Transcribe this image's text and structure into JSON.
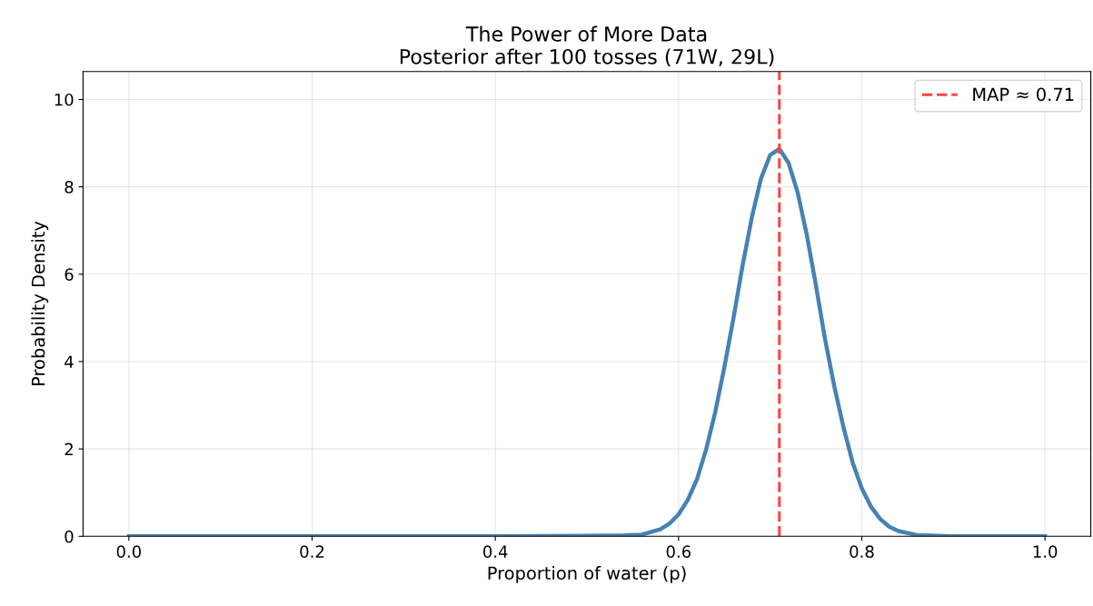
{
  "chart_data": {
    "type": "line",
    "title": "The Power of More Data\nPosterior after 100 tosses (71W, 29L)",
    "xlabel": "Proportion of water (p)",
    "ylabel": "Probability Density",
    "x": [
      0.0,
      0.2,
      0.4,
      0.5,
      0.54,
      0.56,
      0.58,
      0.59,
      0.6,
      0.61,
      0.62,
      0.63,
      0.64,
      0.65,
      0.66,
      0.67,
      0.68,
      0.69,
      0.7,
      0.71,
      0.72,
      0.73,
      0.74,
      0.75,
      0.76,
      0.77,
      0.78,
      0.79,
      0.8,
      0.81,
      0.82,
      0.83,
      0.84,
      0.86,
      0.9,
      1.0
    ],
    "series": [
      {
        "color": "#4682b4",
        "values": [
          0,
          0,
          0,
          0.01,
          0.02,
          0.04,
          0.16,
          0.29,
          0.5,
          0.83,
          1.3,
          1.98,
          2.84,
          3.87,
          5.0,
          6.21,
          7.3,
          8.19,
          8.73,
          8.87,
          8.55,
          7.87,
          6.9,
          5.74,
          4.5,
          3.43,
          2.5,
          1.69,
          1.1,
          0.68,
          0.4,
          0.22,
          0.12,
          0.03,
          0,
          0
        ]
      },
      {
        "name": "MAP ≈ 0.71",
        "color": "#ff4444",
        "line_style": "dashed",
        "x": [
          0.71,
          0.71
        ],
        "values": [
          0,
          10.64
        ]
      }
    ],
    "xlim": [
      -0.05,
      1.05
    ],
    "ylim": [
      0,
      10.64
    ],
    "xticks": [
      {
        "value": 0,
        "label": "0.0"
      },
      0.2,
      0.4,
      0.6,
      0.8,
      {
        "value": 1,
        "label": "1.0"
      }
    ],
    "yticks": [
      0,
      2,
      4,
      6,
      8,
      10
    ],
    "grid": true,
    "legend": "top right"
  }
}
